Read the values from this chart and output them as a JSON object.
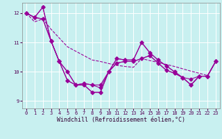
{
  "xlabel": "Windchill (Refroidissement éolien,°C)",
  "background_color": "#c8f0f0",
  "grid_color": "#ffffff",
  "line_color": "#990099",
  "xlim": [
    -0.5,
    23.5
  ],
  "ylim": [
    8.75,
    12.35
  ],
  "yticks": [
    9,
    10,
    11,
    12
  ],
  "xticks": [
    0,
    1,
    2,
    3,
    4,
    5,
    6,
    7,
    8,
    9,
    10,
    11,
    12,
    13,
    14,
    15,
    16,
    17,
    18,
    19,
    20,
    21,
    22,
    23
  ],
  "series": [
    [
      12.0,
      11.85,
      12.2,
      11.05,
      10.35,
      9.7,
      9.55,
      9.55,
      9.3,
      9.3,
      10.0,
      10.45,
      10.4,
      10.4,
      11.0,
      10.65,
      10.4,
      10.2,
      10.0,
      9.8,
      9.55,
      9.85,
      9.85,
      10.35
    ],
    [
      12.0,
      11.85,
      11.8,
      11.05,
      10.35,
      10.0,
      9.55,
      9.6,
      9.55,
      9.55,
      10.0,
      10.3,
      10.35,
      10.35,
      10.45,
      10.55,
      10.3,
      10.05,
      9.95,
      9.8,
      9.75,
      9.85,
      9.85,
      10.35
    ],
    [
      12.0,
      11.85,
      11.8,
      11.05,
      10.35,
      10.0,
      9.55,
      9.6,
      9.55,
      9.45,
      10.0,
      10.3,
      10.35,
      10.35,
      10.45,
      10.55,
      10.3,
      10.05,
      9.95,
      9.8,
      9.55,
      9.85,
      9.85,
      10.35
    ],
    [
      12.0,
      11.85,
      12.2,
      11.05,
      10.35,
      9.7,
      9.55,
      9.55,
      9.3,
      9.3,
      10.0,
      10.45,
      10.4,
      10.4,
      11.0,
      10.65,
      10.4,
      10.2,
      10.0,
      9.8,
      9.55,
      9.85,
      9.85,
      10.35
    ]
  ],
  "straight_line": [
    12.0,
    11.7,
    11.8,
    11.45,
    11.15,
    10.85,
    10.7,
    10.55,
    10.4,
    10.35,
    10.28,
    10.22,
    10.18,
    10.15,
    10.45,
    10.38,
    10.32,
    10.25,
    10.18,
    10.1,
    10.02,
    9.95,
    9.87,
    10.35
  ],
  "marker": "D",
  "markersize": 2.5,
  "linewidth": 0.8,
  "tick_fontsize": 5.0,
  "xlabel_fontsize": 6.0
}
